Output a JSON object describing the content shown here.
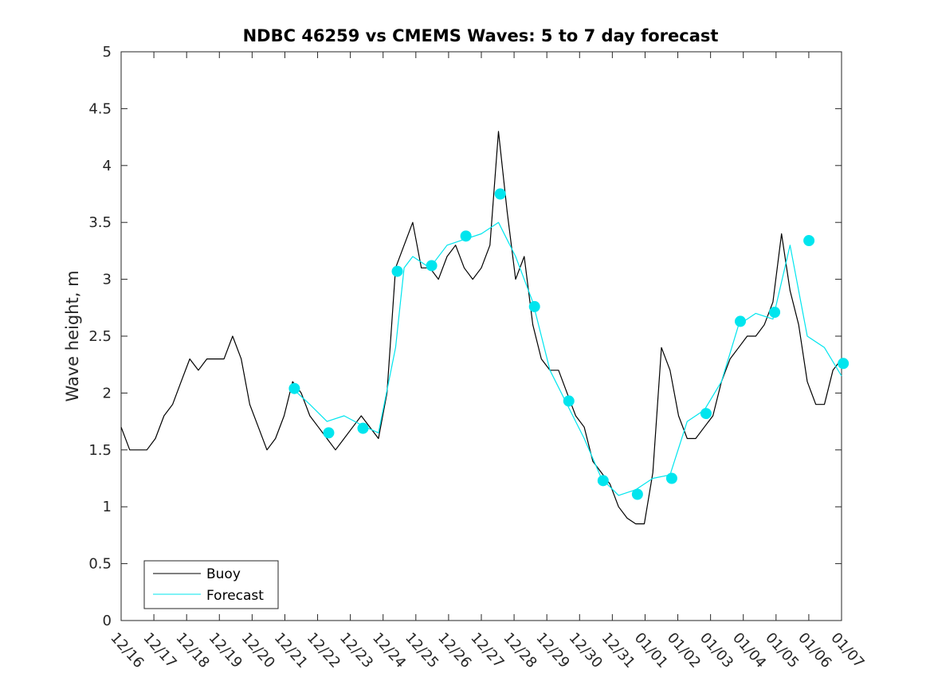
{
  "chart_data": {
    "type": "line",
    "title": "NDBC 46259 vs CMEMS Waves: 5 to 7 day forecast",
    "xlabel": "",
    "ylabel": "Wave height, m",
    "ylim": [
      0,
      5
    ],
    "xlim": [
      0,
      21
    ],
    "yticks": [
      "0",
      "0.5",
      "1",
      "1.5",
      "2",
      "2.5",
      "3",
      "3.5",
      "4",
      "4.5",
      "5"
    ],
    "xtick_labels": [
      "12/16",
      "12/17",
      "12/18",
      "12/19",
      "12/20",
      "12/21",
      "12/22",
      "12/23",
      "12/24",
      "12/25",
      "12/26",
      "12/27",
      "12/28",
      "12/29",
      "12/30",
      "12/31",
      "01/01",
      "01/02",
      "01/03",
      "01/04",
      "01/05",
      "01/06",
      "01/07"
    ],
    "legend": {
      "position": "bottom-left",
      "entries": [
        "Buoy",
        "Forecast"
      ]
    },
    "colors": {
      "buoy": "#000000",
      "forecast": "#00e5ee"
    },
    "series": [
      {
        "name": "Buoy",
        "color": "#000000",
        "x": [
          0,
          0.25,
          0.5,
          0.75,
          1,
          1.25,
          1.5,
          1.75,
          2,
          2.25,
          2.5,
          2.75,
          3,
          3.25,
          3.5,
          3.75,
          4,
          4.25,
          4.5,
          4.75,
          5,
          5.25,
          5.5,
          5.75,
          6,
          6.25,
          6.5,
          6.75,
          7,
          7.25,
          7.5,
          7.75,
          8,
          8.25,
          8.5,
          8.75,
          9,
          9.25,
          9.5,
          9.75,
          10,
          10.25,
          10.5,
          10.75,
          11,
          11.25,
          11.5,
          11.75,
          12,
          12.25,
          12.5,
          12.75,
          13,
          13.25,
          13.5,
          13.75,
          14,
          14.25,
          14.5,
          14.75,
          15,
          15.25,
          15.5,
          15.75,
          16,
          16.25,
          16.5,
          16.75,
          17,
          17.25,
          17.5,
          17.75,
          18,
          18.25,
          18.5,
          18.75,
          19,
          19.25,
          19.5,
          19.75,
          20,
          20.25,
          20.5,
          20.75,
          21
        ],
        "values": [
          1.7,
          1.5,
          1.5,
          1.5,
          1.6,
          1.8,
          1.9,
          2.1,
          2.3,
          2.2,
          2.3,
          2.3,
          2.3,
          2.5,
          2.3,
          1.9,
          1.7,
          1.5,
          1.6,
          1.8,
          2.1,
          2.0,
          1.8,
          1.7,
          1.6,
          1.5,
          1.6,
          1.7,
          1.8,
          1.7,
          1.6,
          2.0,
          3.1,
          3.3,
          3.5,
          3.1,
          3.1,
          3.0,
          3.2,
          3.3,
          3.1,
          3.0,
          3.1,
          3.3,
          4.3,
          3.6,
          3.0,
          3.2,
          2.6,
          2.3,
          2.2,
          2.2,
          2.0,
          1.8,
          1.7,
          1.4,
          1.3,
          1.2,
          1.0,
          0.9,
          0.85,
          0.85,
          1.3,
          2.4,
          2.2,
          1.8,
          1.6,
          1.6,
          1.7,
          1.8,
          2.1,
          2.3,
          2.4,
          2.5,
          2.5,
          2.6,
          2.8,
          3.4,
          2.9,
          2.6,
          2.1,
          1.9,
          1.9,
          2.2,
          2.3
        ]
      },
      {
        "name": "Forecast",
        "color": "#00e5ee",
        "x": [
          5,
          5.5,
          6,
          6.5,
          7,
          7.5,
          8,
          8.25,
          8.5,
          9,
          9.5,
          10,
          10.5,
          11,
          11.5,
          12,
          12.5,
          13,
          13.5,
          14,
          14.5,
          15,
          15.5,
          16,
          16.5,
          17,
          17.5,
          18,
          18.5,
          19,
          19.5,
          20,
          20.5,
          21
        ],
        "values": [
          2.04,
          1.9,
          1.75,
          1.8,
          1.72,
          1.65,
          2.4,
          3.1,
          3.2,
          3.1,
          3.3,
          3.35,
          3.4,
          3.5,
          3.2,
          2.8,
          2.2,
          1.9,
          1.6,
          1.25,
          1.1,
          1.15,
          1.25,
          1.28,
          1.75,
          1.85,
          2.1,
          2.6,
          2.7,
          2.65,
          3.3,
          2.5,
          2.4,
          2.15
        ]
      },
      {
        "name": "Forecast markers",
        "color": "#00e5ee",
        "x": [
          5.05,
          6.05,
          7.05,
          8.05,
          9.05,
          10.05,
          11.05,
          12.05,
          13.05,
          14.05,
          15.05,
          16.05,
          17.05,
          18.05,
          19.05,
          20.05,
          21.05
        ],
        "values": [
          2.04,
          1.65,
          1.69,
          3.07,
          3.12,
          3.38,
          3.75,
          2.76,
          1.93,
          1.23,
          1.11,
          1.25,
          1.82,
          2.63,
          2.71,
          3.34,
          2.26
        ]
      }
    ]
  }
}
